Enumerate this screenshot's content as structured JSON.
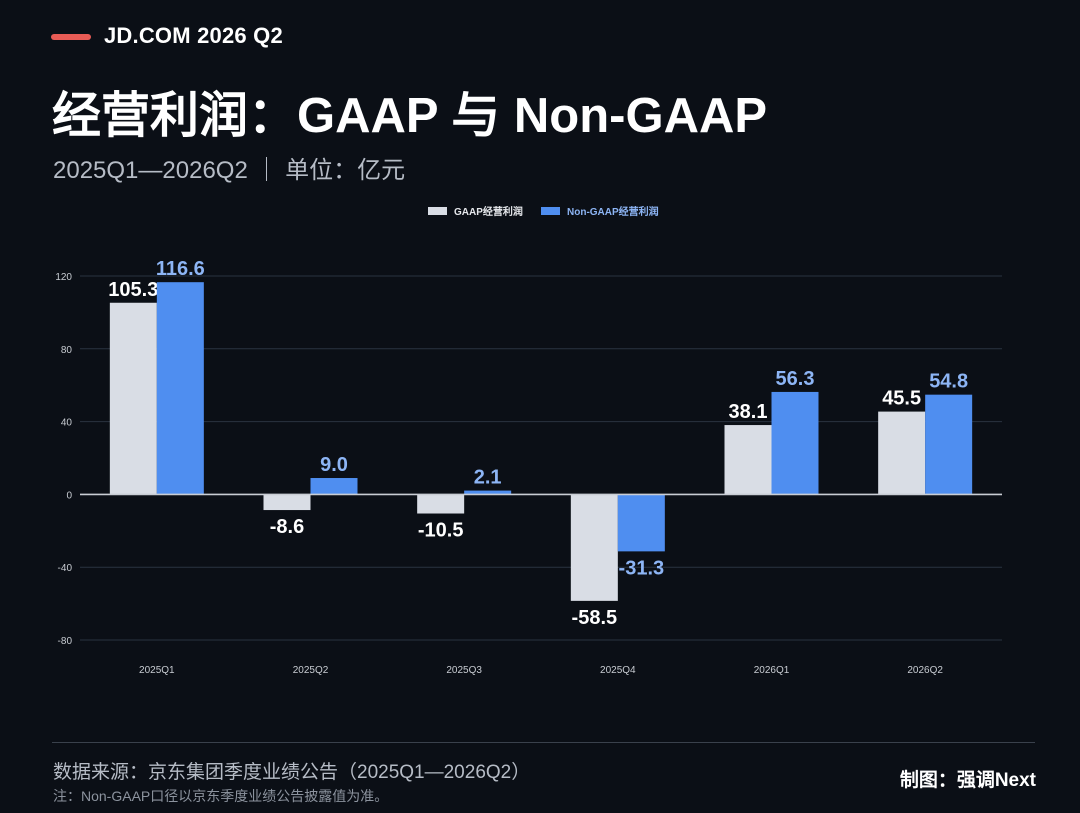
{
  "header": {
    "kicker": "JD.COM 2026 Q2",
    "title": "经营利润：GAAP 与 Non-GAAP",
    "subtitle": "2025Q1—2026Q2 ｜ 单位：亿元"
  },
  "footer": {
    "source": "数据来源：京东集团季度业绩公告（2025Q1—2026Q2）",
    "note": "注：Non-GAAP口径以京东季度业绩公告披露值为准。",
    "credit": "制图：强调Next"
  },
  "colors": {
    "accent": "#e85b55",
    "gaap": "#d9dde5",
    "nongaap": "#4f8ef0",
    "nongaap_label": "#8db5f5",
    "grid": "#2a3340",
    "axis": "#c9cdd4",
    "tick": "#c8ccd2",
    "background": "#0b0f16"
  },
  "chart_data": {
    "type": "bar",
    "categories": [
      "2025Q1",
      "2025Q2",
      "2025Q3",
      "2025Q4",
      "2026Q1",
      "2026Q2"
    ],
    "series": [
      {
        "name": "GAAP经营利润",
        "values": [
          105.3,
          -8.6,
          -10.5,
          -58.5,
          38.1,
          45.5
        ]
      },
      {
        "name": "Non-GAAP经营利润",
        "values": [
          116.6,
          9.0,
          2.1,
          -31.3,
          56.3,
          54.8
        ]
      }
    ],
    "data_labels": [
      [
        "105.3",
        "-8.6",
        "-10.5",
        "-58.5",
        "38.1",
        "45.5"
      ],
      [
        "116.6",
        "9.0",
        "2.1",
        "-31.3",
        "56.3",
        "54.8"
      ]
    ],
    "yticks": [
      -80,
      -40,
      0,
      40,
      80,
      120
    ],
    "ylim": [
      -80,
      120
    ],
    "grid": true,
    "legend_position": "top-center",
    "xlabel": "",
    "ylabel": ""
  }
}
